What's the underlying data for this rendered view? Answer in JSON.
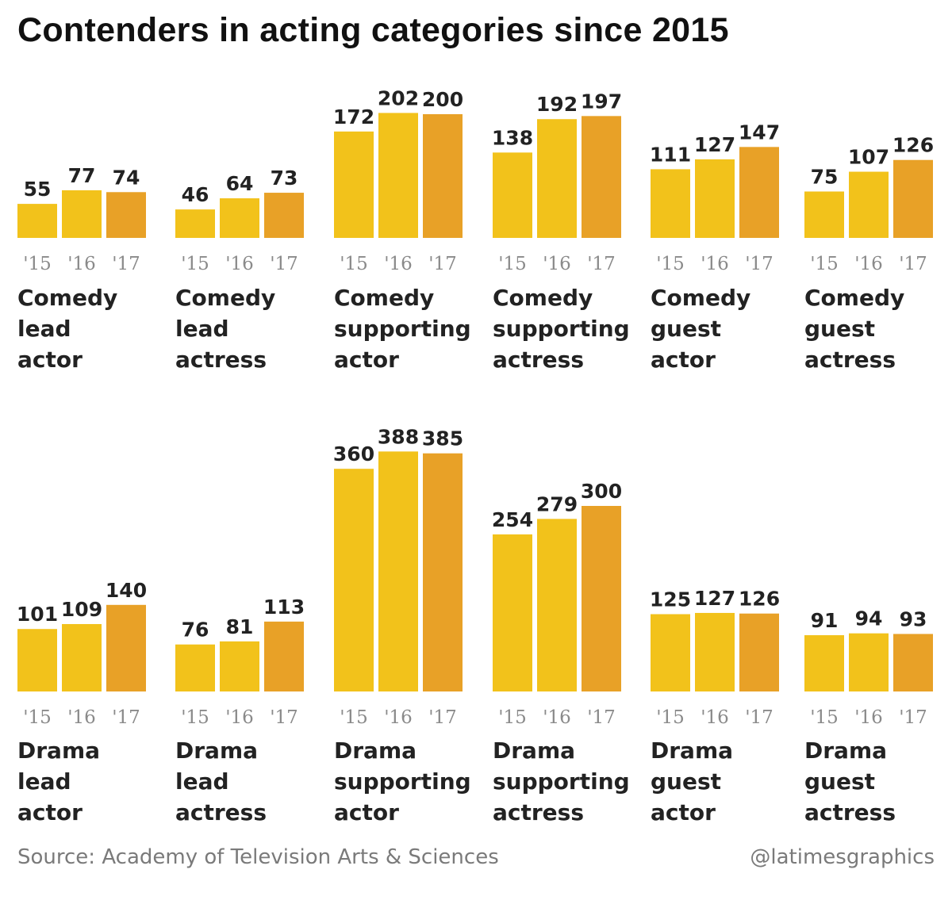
{
  "title": "Contenders in acting categories since 2015",
  "source": "Source: Academy of Television Arts & Sciences",
  "credit": "@latimesgraphics",
  "colors": {
    "year_15": "#F2C21B",
    "year_16": "#F2C21B",
    "year_17": "#E8A127",
    "label": "#222222",
    "axis_text": "#8a8a8a"
  },
  "chart_data": {
    "type": "bar",
    "years": [
      "'15",
      "'16",
      "'17"
    ],
    "panels": [
      {
        "category": "Comedy lead actor",
        "label_lines": [
          "Comedy",
          "lead",
          "actor"
        ],
        "values": [
          55,
          77,
          74
        ]
      },
      {
        "category": "Comedy lead actress",
        "label_lines": [
          "Comedy",
          "lead",
          "actress"
        ],
        "values": [
          46,
          64,
          73
        ]
      },
      {
        "category": "Comedy supporting actor",
        "label_lines": [
          "Comedy",
          "supporting",
          "actor"
        ],
        "values": [
          172,
          202,
          200
        ]
      },
      {
        "category": "Comedy supporting actress",
        "label_lines": [
          "Comedy",
          "supporting",
          "actress"
        ],
        "values": [
          138,
          192,
          197
        ]
      },
      {
        "category": "Comedy guest actor",
        "label_lines": [
          "Comedy",
          "guest",
          "actor"
        ],
        "values": [
          111,
          127,
          147
        ]
      },
      {
        "category": "Comedy guest actress",
        "label_lines": [
          "Comedy",
          "guest",
          "actress"
        ],
        "values": [
          75,
          107,
          126
        ]
      },
      {
        "category": "Drama lead actor",
        "label_lines": [
          "Drama",
          "lead",
          "actor"
        ],
        "values": [
          101,
          109,
          140
        ]
      },
      {
        "category": "Drama lead actress",
        "label_lines": [
          "Drama",
          "lead",
          "actress"
        ],
        "values": [
          76,
          81,
          113
        ]
      },
      {
        "category": "Drama supporting actor",
        "label_lines": [
          "Drama",
          "supporting",
          "actor"
        ],
        "values": [
          360,
          388,
          385
        ]
      },
      {
        "category": "Drama supporting actress",
        "label_lines": [
          "Drama",
          "supporting",
          "actress"
        ],
        "values": [
          254,
          279,
          300
        ]
      },
      {
        "category": "Drama guest actor",
        "label_lines": [
          "Drama",
          "guest",
          "actor"
        ],
        "values": [
          125,
          127,
          126
        ]
      },
      {
        "category": "Drama guest actress",
        "label_lines": [
          "Drama",
          "guest",
          "actress"
        ],
        "values": [
          91,
          94,
          93
        ]
      }
    ]
  }
}
